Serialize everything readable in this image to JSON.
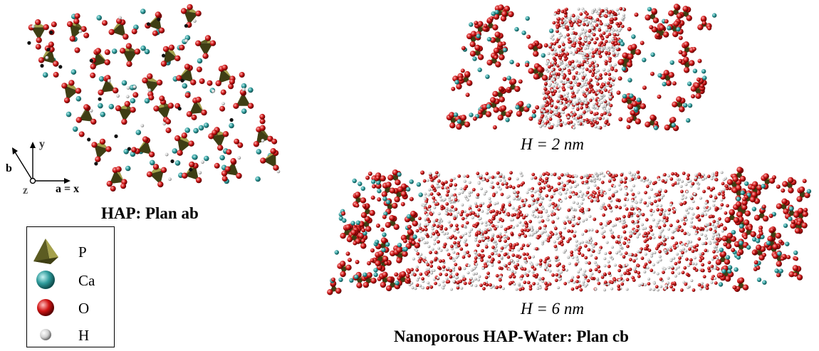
{
  "panels": {
    "hap_plan_ab": {
      "caption": "HAP: Plan ab"
    },
    "pore_2nm": {
      "caption": "H = 2 nm"
    },
    "pore_6nm": {
      "caption": "H = 6 nm"
    },
    "system_caption": "Nanoporous HAP-Water: Plan cb"
  },
  "axes": {
    "y": "y",
    "b": "b",
    "z": "z",
    "ax": "a = x"
  },
  "legend": {
    "items": [
      {
        "label": "P",
        "icon": "tetrahedron-icon",
        "color": "#8a8a3a"
      },
      {
        "label": "Ca",
        "icon": "sphere-icon",
        "color": "#3aa7a7"
      },
      {
        "label": "O",
        "icon": "sphere-icon",
        "color": "#d21e1e"
      },
      {
        "label": "H",
        "icon": "sphere-icon",
        "color": "#d8d8d8"
      }
    ]
  },
  "colors": {
    "phosphate": "#8a8a3a",
    "calcium": "#3aa7a7",
    "oxygen": "#c81818",
    "hydrogen": "#d0d0d0"
  }
}
